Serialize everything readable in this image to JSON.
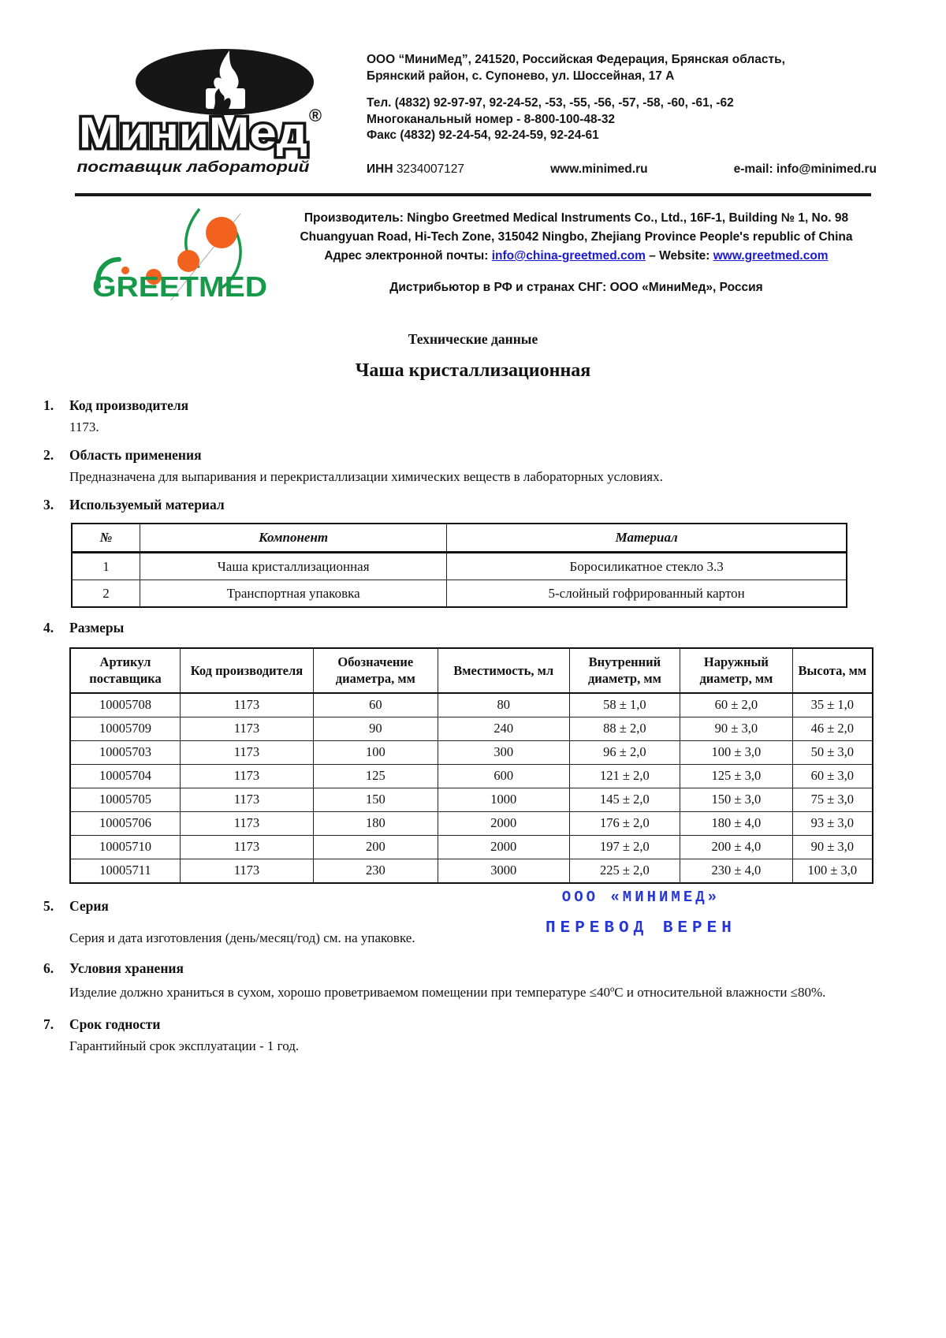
{
  "minimed_logo": {
    "brand": "МиниМед",
    "registered": "®",
    "tagline": "поставщик лабораторий"
  },
  "header": {
    "address_line1": "ООО “МиниМед”, 241520, Российская Федерация, Брянская область,",
    "address_line2": "Брянский район, с. Супонево, ул. Шоссейная, 17 А",
    "phone": "Тел. (4832) 92-97-97, 92-24-52, -53, -55, -56, -57, -58, -60, -61, -62",
    "multichannel": "Многоканальный номер - 8-800-100-48-32",
    "fax": "Факс (4832) 92-24-54, 92-24-59, 92-24-61",
    "inn_label": "ИНН",
    "inn_value": "3234007127",
    "website": "www.minimed.ru",
    "email_label": "e-mail:",
    "email": "info@minimed.ru"
  },
  "manufacturer": {
    "greetmed_logo_text": "GREETMED",
    "line1": "Производитель: Ningbo Greetmed Medical Instruments Co., Ltd., 16F-1, Building № 1, No. 98",
    "line2": "Chuangyuan Road, Hi-Tech Zone, 315042 Ningbo, Zhejiang Province People's republic of China",
    "email_prefix": "Адрес электронной почты:",
    "email_link": "info@china-greetmed.com",
    "website_sep": "– Website:",
    "website_link": "www.greetmed.com",
    "distributor": "Дистрибьютор в РФ и странах СНГ: ООО «МиниМед», Россия"
  },
  "doc": {
    "subtitle": "Технические данные",
    "title": "Чаша кристаллизационная"
  },
  "sections": {
    "s1": {
      "num": "1.",
      "title": "Код производителя",
      "body": "1173."
    },
    "s2": {
      "num": "2.",
      "title": "Область применения",
      "body": "Предназначена для выпаривания и перекристаллизации химических веществ в лабораторных условиях."
    },
    "s3": {
      "num": "3.",
      "title": "Используемый материал"
    },
    "s4": {
      "num": "4.",
      "title": "Размеры"
    },
    "s5": {
      "num": "5.",
      "title": "Серия",
      "body": "Серия и дата изготовления (день/месяц/год) см. на упаковке."
    },
    "s6": {
      "num": "6.",
      "title": "Условия хранения",
      "body": "Изделие должно храниться в сухом, хорошо проветриваемом помещении при температуре ≤40ºС и относительной влажности ≤80%."
    },
    "s7": {
      "num": "7.",
      "title": "Срок годности",
      "body": "Гарантийный срок эксплуатации - 1 год."
    }
  },
  "materials_table": {
    "headers": [
      "№",
      "Компонент",
      "Материал"
    ],
    "rows": [
      [
        "1",
        "Чаша кристаллизационная",
        "Боросиликатное стекло 3.3"
      ],
      [
        "2",
        "Транспортная упаковка",
        "5-слойный гофрированный картон"
      ]
    ]
  },
  "sizes_table": {
    "headers": [
      "Артикул поставщика",
      "Код производителя",
      "Обозначение диаметра, мм",
      "Вместимость, мл",
      "Внутренний диаметр, мм",
      "Наружный диаметр, мм",
      "Высота, мм"
    ],
    "rows": [
      [
        "10005708",
        "1173",
        "60",
        "80",
        "58 ± 1,0",
        "60 ± 2,0",
        "35 ± 1,0"
      ],
      [
        "10005709",
        "1173",
        "90",
        "240",
        "88 ± 2,0",
        "90 ± 3,0",
        "46 ± 2,0"
      ],
      [
        "10005703",
        "1173",
        "100",
        "300",
        "96 ± 2,0",
        "100 ± 3,0",
        "50 ± 3,0"
      ],
      [
        "10005704",
        "1173",
        "125",
        "600",
        "121 ± 2,0",
        "125 ± 3,0",
        "60 ± 3,0"
      ],
      [
        "10005705",
        "1173",
        "150",
        "1000",
        "145 ± 2,0",
        "150 ± 3,0",
        "75 ± 3,0"
      ],
      [
        "10005706",
        "1173",
        "180",
        "2000",
        "176 ± 2,0",
        "180 ± 4,0",
        "93 ± 3,0"
      ],
      [
        "10005710",
        "1173",
        "200",
        "2000",
        "197 ± 2,0",
        "200 ± 4,0",
        "90 ± 3,0"
      ],
      [
        "10005711",
        "1173",
        "230",
        "3000",
        "225 ± 2,0",
        "230 ± 4,0",
        "100 ± 3,0"
      ]
    ]
  },
  "stamp": {
    "line1": "ООО «МИНИМЕД»",
    "line2": "ПЕРЕВОД ВЕРЕН",
    "color": "#2636d6"
  },
  "colors": {
    "link_blue": "#1a1ad1",
    "greetmed_green": "#169a4a",
    "greetmed_orange": "#f2611d",
    "stamp_blue": "#2636d6"
  }
}
